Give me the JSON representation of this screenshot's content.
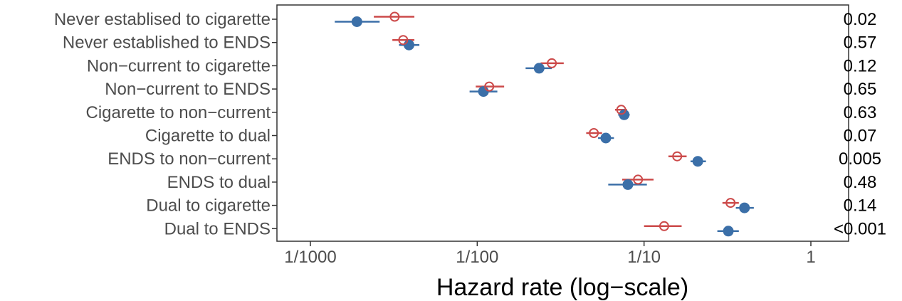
{
  "chart_data": {
    "type": "scatter",
    "subtype": "forest-plot",
    "xlabel": "Hazard rate (log−scale)",
    "x_scale": "log10",
    "xlim": [
      0.00075,
      1.5
    ],
    "xticks": [
      {
        "value": 0.001,
        "label": "1/1000"
      },
      {
        "value": 0.01,
        "label": "1/100"
      },
      {
        "value": 0.1,
        "label": "1/10"
      },
      {
        "value": 1,
        "label": "1"
      }
    ],
    "grid": false,
    "colors": {
      "series_a": "#3b6fa8",
      "series_b": "#cc4a4a"
    },
    "series": [
      {
        "marker": "filled-circle",
        "color": "#3b6fa8"
      },
      {
        "marker": "open-circle",
        "color": "#cc4a4a"
      }
    ],
    "rows": [
      {
        "label": "Never establised to cigarette",
        "p": "0.02",
        "a": {
          "est": 0.0019,
          "lo": 0.0014,
          "hi": 0.0026
        },
        "b": {
          "est": 0.0032,
          "lo": 0.0024,
          "hi": 0.0042
        }
      },
      {
        "label": "Never established to ENDS",
        "p": "0.57",
        "a": {
          "est": 0.0039,
          "lo": 0.0034,
          "hi": 0.0045
        },
        "b": {
          "est": 0.0036,
          "lo": 0.0031,
          "hi": 0.0042
        }
      },
      {
        "label": "Non−current to cigarette",
        "p": "0.12",
        "a": {
          "est": 0.0235,
          "lo": 0.0195,
          "hi": 0.028
        },
        "b": {
          "est": 0.028,
          "lo": 0.024,
          "hi": 0.033
        }
      },
      {
        "label": "Non−current to ENDS",
        "p": "0.65",
        "a": {
          "est": 0.0109,
          "lo": 0.009,
          "hi": 0.0132
        },
        "b": {
          "est": 0.0118,
          "lo": 0.0098,
          "hi": 0.0145
        }
      },
      {
        "label": "Cigarette to non−current",
        "p": "0.63",
        "a": {
          "est": 0.076,
          "lo": 0.07,
          "hi": 0.082
        },
        "b": {
          "est": 0.073,
          "lo": 0.067,
          "hi": 0.079
        }
      },
      {
        "label": "Cigarette to dual",
        "p": "0.07",
        "a": {
          "est": 0.059,
          "lo": 0.053,
          "hi": 0.066
        },
        "b": {
          "est": 0.05,
          "lo": 0.045,
          "hi": 0.056
        }
      },
      {
        "label": "ENDS to non−current",
        "p": "0.005",
        "a": {
          "est": 0.21,
          "lo": 0.19,
          "hi": 0.235
        },
        "b": {
          "est": 0.158,
          "lo": 0.14,
          "hi": 0.18
        }
      },
      {
        "label": "ENDS to dual",
        "p": "0.48",
        "a": {
          "est": 0.08,
          "lo": 0.061,
          "hi": 0.104
        },
        "b": {
          "est": 0.092,
          "lo": 0.074,
          "hi": 0.114
        }
      },
      {
        "label": "Dual to cigarette",
        "p": "0.14",
        "a": {
          "est": 0.4,
          "lo": 0.355,
          "hi": 0.455
        },
        "b": {
          "est": 0.33,
          "lo": 0.295,
          "hi": 0.37
        }
      },
      {
        "label": "Dual to ENDS",
        "p": "<0.001",
        "a": {
          "est": 0.32,
          "lo": 0.275,
          "hi": 0.37
        },
        "b": {
          "est": 0.132,
          "lo": 0.1,
          "hi": 0.168
        }
      }
    ]
  }
}
